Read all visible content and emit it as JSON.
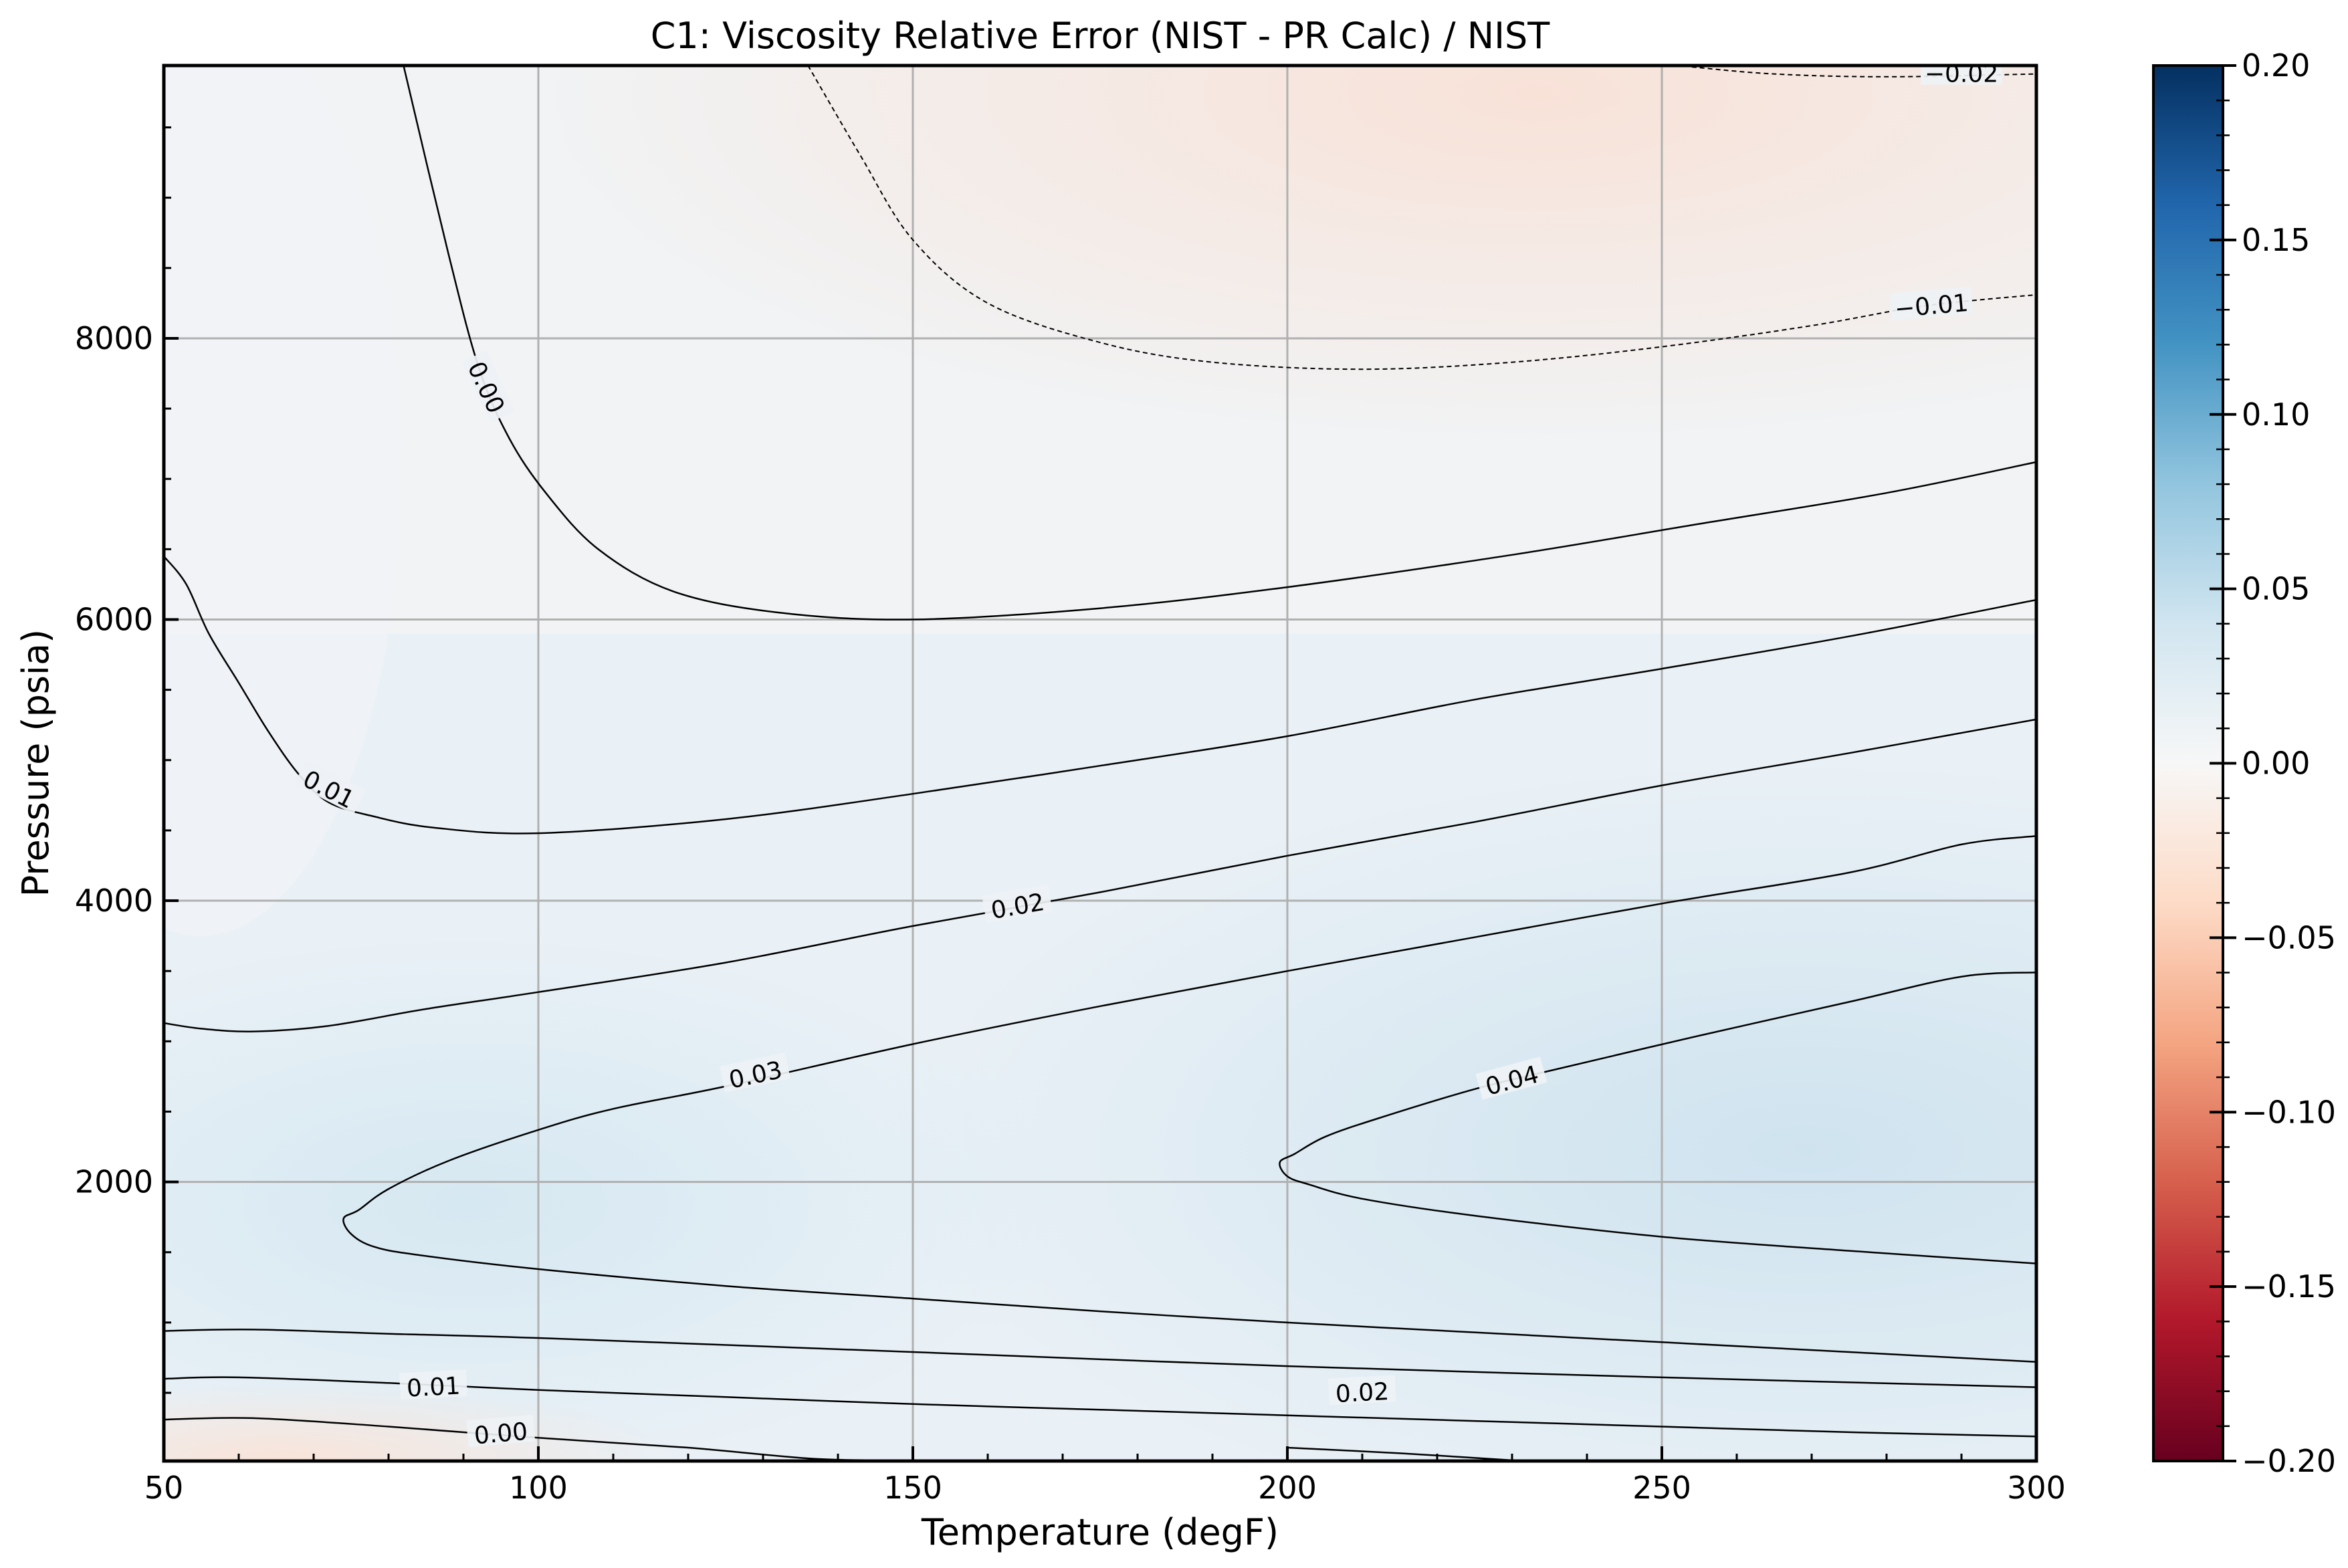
{
  "chart_data": {
    "type": "contour",
    "title": "C1: Viscosity Relative Error (NIST - PR Calc) / NIST",
    "xlabel": "Temperature (degF)",
    "ylabel": "Pressure (psia)",
    "xlim": [
      50,
      300
    ],
    "ylim": [
      15,
      9940
    ],
    "xticks": [
      50,
      100,
      150,
      200,
      250,
      300
    ],
    "xtick_labels": [
      "50",
      "100",
      "150",
      "200",
      "250",
      "300"
    ],
    "yticks": [
      2000,
      4000,
      6000,
      8000
    ],
    "ytick_labels": [
      "2000",
      "4000",
      "6000",
      "8000"
    ],
    "grid": true,
    "colormap": "RdBu",
    "colorbar": {
      "vmin": -0.2,
      "vmax": 0.2,
      "ticks": [
        0.2,
        0.15,
        0.1,
        0.05,
        0.0,
        -0.05,
        -0.1,
        -0.15,
        -0.2
      ],
      "tick_labels": [
        "0.20",
        "0.15",
        "0.10",
        "0.05",
        "0.00",
        "−0.05",
        "−0.10",
        "−0.15",
        "−0.20"
      ],
      "colors": [
        "#67001f",
        "#b2182b",
        "#d6604d",
        "#f4a582",
        "#fddbc7",
        "#f7f7f7",
        "#d1e5f0",
        "#92c5de",
        "#4393c3",
        "#2166ac",
        "#053061"
      ]
    },
    "field_summary": [
      {
        "x": 275,
        "y": 2200,
        "value": 0.048
      },
      {
        "x": 60,
        "y": 1800,
        "value": 0.032
      },
      {
        "x": 220,
        "y": 9700,
        "value": -0.024
      },
      {
        "x": 60,
        "y": 100,
        "value": -0.005
      }
    ],
    "contours": [
      {
        "level": 0.0,
        "label": "0.00",
        "style": "solid",
        "points": [
          [
            82,
            9940
          ],
          [
            88,
            8600
          ],
          [
            92,
            7800
          ],
          [
            96,
            7300
          ],
          [
            101,
            6900
          ],
          [
            108,
            6500
          ],
          [
            118,
            6200
          ],
          [
            132,
            6050
          ],
          [
            150,
            6000
          ],
          [
            175,
            6080
          ],
          [
            200,
            6230
          ],
          [
            230,
            6460
          ],
          [
            255,
            6680
          ],
          [
            280,
            6900
          ],
          [
            300,
            7120
          ]
        ]
      },
      {
        "level": 0.01,
        "label": "0.01",
        "style": "solid",
        "points": [
          [
            50,
            6450
          ],
          [
            53,
            6250
          ],
          [
            56,
            5900
          ],
          [
            60,
            5550
          ],
          [
            64,
            5200
          ],
          [
            68,
            4900
          ],
          [
            72,
            4700
          ],
          [
            78,
            4600
          ],
          [
            86,
            4520
          ],
          [
            100,
            4480
          ],
          [
            125,
            4580
          ],
          [
            150,
            4760
          ],
          [
            175,
            4960
          ],
          [
            200,
            5170
          ],
          [
            225,
            5430
          ],
          [
            250,
            5650
          ],
          [
            275,
            5880
          ],
          [
            300,
            6140
          ]
        ]
      },
      {
        "level": 0.02,
        "label": "0.02",
        "style": "solid",
        "points": [
          [
            50,
            3130
          ],
          [
            55,
            3090
          ],
          [
            62,
            3070
          ],
          [
            72,
            3110
          ],
          [
            85,
            3230
          ],
          [
            100,
            3350
          ],
          [
            125,
            3560
          ],
          [
            150,
            3820
          ],
          [
            175,
            4060
          ],
          [
            200,
            4320
          ],
          [
            225,
            4560
          ],
          [
            250,
            4820
          ],
          [
            275,
            5050
          ],
          [
            300,
            5290
          ]
        ]
      },
      {
        "level": 0.03,
        "label": "0.03",
        "style": "solid",
        "points": [
          [
            300,
            4460
          ],
          [
            290,
            4400
          ],
          [
            275,
            4200
          ],
          [
            250,
            3980
          ],
          [
            225,
            3740
          ],
          [
            200,
            3500
          ],
          [
            175,
            3250
          ],
          [
            150,
            2980
          ],
          [
            125,
            2680
          ],
          [
            110,
            2520
          ],
          [
            100,
            2370
          ],
          [
            88,
            2150
          ],
          [
            80,
            1950
          ],
          [
            76,
            1800
          ],
          [
            74,
            1740
          ],
          [
            75,
            1630
          ],
          [
            78,
            1540
          ],
          [
            84,
            1480
          ],
          [
            100,
            1380
          ],
          [
            125,
            1260
          ],
          [
            150,
            1170
          ],
          [
            175,
            1080
          ],
          [
            200,
            1000
          ],
          [
            225,
            930
          ],
          [
            250,
            860
          ],
          [
            275,
            790
          ],
          [
            300,
            720
          ]
        ]
      },
      {
        "level": 0.04,
        "label": "0.04",
        "style": "solid",
        "points": [
          [
            300,
            3490
          ],
          [
            290,
            3460
          ],
          [
            275,
            3280
          ],
          [
            255,
            3040
          ],
          [
            235,
            2790
          ],
          [
            225,
            2660
          ],
          [
            212,
            2450
          ],
          [
            205,
            2320
          ],
          [
            201,
            2200
          ],
          [
            199,
            2140
          ],
          [
            200,
            2040
          ],
          [
            203,
            1980
          ],
          [
            210,
            1880
          ],
          [
            225,
            1760
          ],
          [
            250,
            1610
          ],
          [
            275,
            1510
          ],
          [
            300,
            1420
          ]
        ]
      },
      {
        "level": 0.02,
        "label": "0.02",
        "style": "solid",
        "points": [
          [
            50,
            600
          ],
          [
            60,
            610
          ],
          [
            80,
            570
          ],
          [
            100,
            520
          ],
          [
            125,
            470
          ],
          [
            150,
            420
          ],
          [
            175,
            380
          ],
          [
            200,
            340
          ],
          [
            225,
            300
          ],
          [
            250,
            260
          ],
          [
            275,
            220
          ],
          [
            300,
            190
          ]
        ]
      },
      {
        "level": 0.01,
        "label": "0.01",
        "style": "solid",
        "points": [
          [
            50,
            940
          ],
          [
            62,
            950
          ],
          [
            80,
            920
          ],
          [
            100,
            890
          ],
          [
            150,
            790
          ],
          [
            200,
            690
          ],
          [
            250,
            610
          ],
          [
            300,
            540
          ]
        ]
      },
      {
        "level": 0.0,
        "label": "0.00",
        "style": "solid",
        "points": [
          [
            50,
            310
          ],
          [
            62,
            320
          ],
          [
            80,
            260
          ],
          [
            100,
            180
          ],
          [
            120,
            110
          ],
          [
            137,
            30
          ],
          [
            150,
            20
          ]
        ]
      },
      {
        "level": 0.0,
        "label": "",
        "style": "solid",
        "points": [
          [
            200,
            110
          ],
          [
            215,
            70
          ],
          [
            230,
            20
          ]
        ]
      },
      {
        "level": -0.01,
        "label": "−0.01",
        "style": "dashed",
        "points": [
          [
            136,
            9940
          ],
          [
            143,
            9300
          ],
          [
            150,
            8700
          ],
          [
            160,
            8250
          ],
          [
            175,
            7970
          ],
          [
            190,
            7830
          ],
          [
            210,
            7780
          ],
          [
            230,
            7830
          ],
          [
            250,
            7940
          ],
          [
            270,
            8090
          ],
          [
            285,
            8230
          ],
          [
            300,
            8310
          ]
        ]
      },
      {
        "level": -0.02,
        "label": "−0.02",
        "style": "dashed",
        "points": [
          [
            254,
            9930
          ],
          [
            265,
            9880
          ],
          [
            280,
            9860
          ],
          [
            300,
            9880
          ]
        ]
      }
    ],
    "contour_labels": [
      {
        "text": "0.00",
        "x": 93,
        "y": 7650,
        "angle": 65
      },
      {
        "text": "0.01",
        "x": 72,
        "y": 4790,
        "angle": 27
      },
      {
        "text": "0.02",
        "x": 164,
        "y": 3960,
        "angle": -10
      },
      {
        "text": "0.03",
        "x": 129,
        "y": 2760,
        "angle": -12
      },
      {
        "text": "0.04",
        "x": 230,
        "y": 2720,
        "angle": -15
      },
      {
        "text": "0.01",
        "x": 86,
        "y": 540,
        "angle": -3
      },
      {
        "text": "0.02",
        "x": 210,
        "y": 500,
        "angle": -3
      },
      {
        "text": "0.00",
        "x": 95,
        "y": 210,
        "angle": -5
      },
      {
        "text": "−0.01",
        "x": 286,
        "y": 8230,
        "angle": -5
      },
      {
        "text": "−0.02",
        "x": 290,
        "y": 9880,
        "angle": 0
      }
    ]
  }
}
